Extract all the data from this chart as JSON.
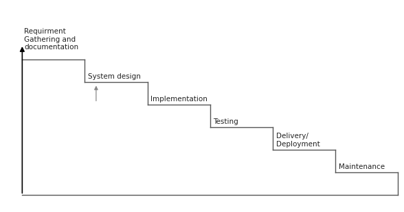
{
  "steps": [
    "Requirment\nGathering and\ndocumentation",
    "System design",
    "Implementation",
    "Testing",
    "Delivery/\nDeployment",
    "Maintenance"
  ],
  "line_color": "#555555",
  "arrow_color": "#888888",
  "text_color": "#222222",
  "bg_color": "#ffffff",
  "fig_width": 5.88,
  "fig_height": 3.1,
  "dpi": 100,
  "lm": 0.055,
  "rm": 0.985,
  "tm": 0.72,
  "bm": 0.08,
  "step_label_fontsize": 7.5
}
